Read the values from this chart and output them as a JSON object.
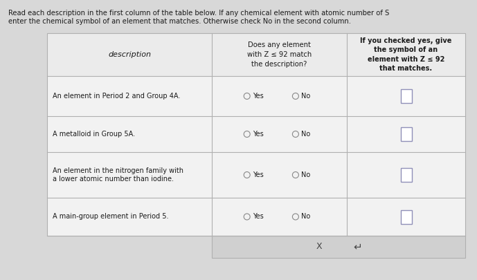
{
  "bg_color": "#d8d8d8",
  "table_bg": "#f2f2f2",
  "header_bg": "#ebebeb",
  "border_color": "#b0b0b0",
  "text_color": "#1a1a1a",
  "title_line1": "Read each description in the first column of the table below. If any chemical element with atomic number of S",
  "title_line2": "enter the chemical symbol of an element that matches. Otherwise check No in the second column.",
  "col_headers": [
    "description",
    "Does any element\nwith Z ≤ 92 match\nthe description?",
    "If you checked yes, give\nthe symbol of an\nelement with Z ≤ 92\nthat matches."
  ],
  "rows": [
    {
      "desc": "An element in Period 2 and Group 4A."
    },
    {
      "desc": "A metalloid in Group 5A."
    },
    {
      "desc": "An element in the nitrogen family with\na lower atomic number than iodine."
    },
    {
      "desc": "A main-group element in Period 5."
    }
  ],
  "footer_symbols": [
    "X",
    "↵"
  ],
  "radio_color": "#888888",
  "symbol_box_color": "#9090b8",
  "footer_bg": "#d0d0d0"
}
